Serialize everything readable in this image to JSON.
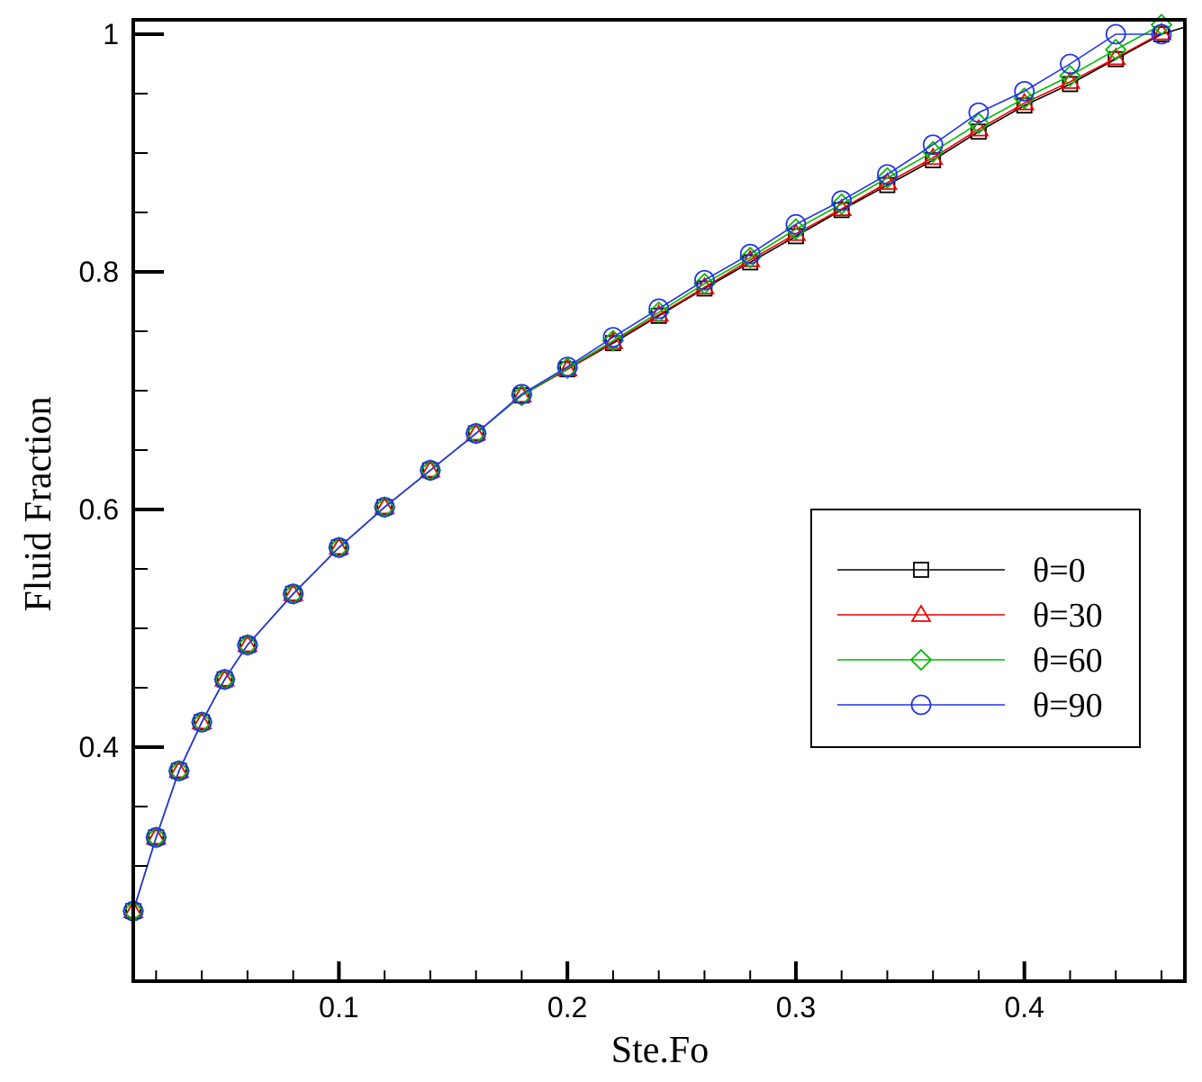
{
  "chart_data": {
    "type": "line",
    "xlabel": "Ste.Fo",
    "ylabel": "Fluid Fraction",
    "xlim": [
      0.01,
      0.47
    ],
    "ylim": [
      0.26,
      1.01
    ],
    "x_ticks_major": [
      0.1,
      0.2,
      0.3,
      0.4
    ],
    "x_tick_labels": [
      "0.1",
      "0.2",
      "0.3",
      "0.4"
    ],
    "y_ticks_major": [
      0.4,
      0.6,
      0.8,
      1.0
    ],
    "y_tick_labels": [
      "0.4",
      "0.6",
      "0.8",
      "1"
    ],
    "grid": false,
    "legend_position": "center-right",
    "x": [
      0.01,
      0.02,
      0.03,
      0.04,
      0.05,
      0.06,
      0.08,
      0.1,
      0.12,
      0.14,
      0.16,
      0.18,
      0.2,
      0.22,
      0.24,
      0.26,
      0.28,
      0.3,
      0.32,
      0.34,
      0.36,
      0.38,
      0.4,
      0.42,
      0.44,
      0.46
    ],
    "series": [
      {
        "name": "θ=0",
        "color": "#000000",
        "marker": "square",
        "values": [
          0.262,
          0.324,
          0.38,
          0.421,
          0.457,
          0.486,
          0.529,
          0.568,
          0.602,
          0.633,
          0.664,
          0.696,
          0.718,
          0.74,
          0.763,
          0.786,
          0.808,
          0.83,
          0.852,
          0.873,
          0.894,
          0.918,
          0.94,
          0.958,
          0.979,
          1.0
        ]
      },
      {
        "name": "θ=30",
        "color": "#ee0000",
        "marker": "triangle",
        "values": [
          0.262,
          0.324,
          0.38,
          0.421,
          0.457,
          0.486,
          0.529,
          0.568,
          0.602,
          0.633,
          0.664,
          0.696,
          0.718,
          0.741,
          0.764,
          0.787,
          0.81,
          0.832,
          0.853,
          0.875,
          0.896,
          0.92,
          0.942,
          0.96,
          0.98,
          1.001
        ]
      },
      {
        "name": "θ=60",
        "color": "#00bb00",
        "marker": "diamond",
        "values": [
          0.262,
          0.324,
          0.38,
          0.421,
          0.457,
          0.486,
          0.529,
          0.568,
          0.602,
          0.633,
          0.664,
          0.696,
          0.719,
          0.742,
          0.766,
          0.79,
          0.812,
          0.836,
          0.857,
          0.879,
          0.901,
          0.925,
          0.946,
          0.965,
          0.987,
          1.008
        ]
      },
      {
        "name": "θ=90",
        "color": "#2233ee",
        "marker": "circle",
        "values": [
          0.262,
          0.324,
          0.38,
          0.421,
          0.457,
          0.486,
          0.529,
          0.568,
          0.602,
          0.633,
          0.664,
          0.697,
          0.72,
          0.745,
          0.769,
          0.793,
          0.815,
          0.84,
          0.86,
          0.882,
          0.907,
          0.934,
          0.952,
          0.975,
          1.0,
          1.0
        ]
      }
    ]
  }
}
